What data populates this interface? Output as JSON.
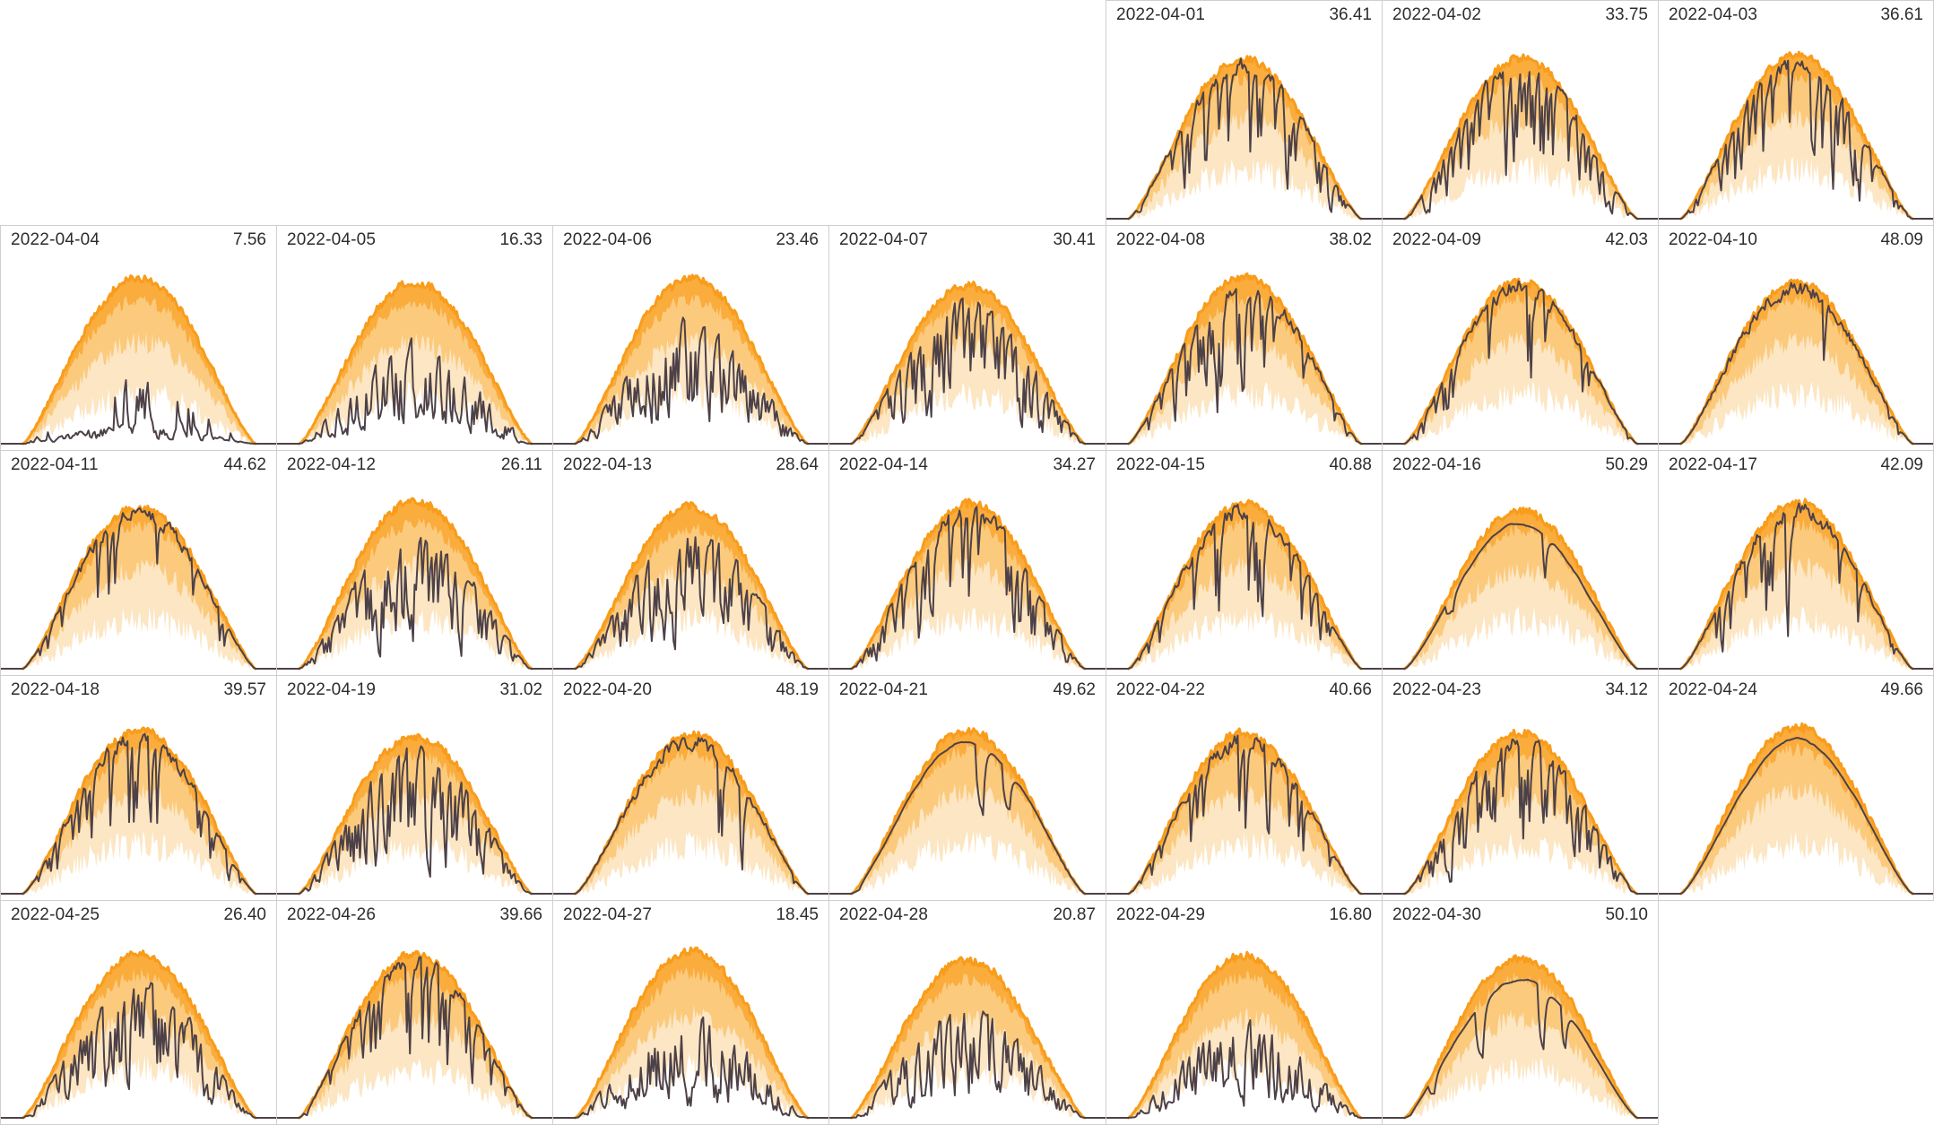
{
  "chart_data": {
    "type": "area",
    "layout": "calendar-small-multiples",
    "title": "",
    "columns": 7,
    "rows": 5,
    "week_start": "Monday",
    "first_cell_column_index": 4,
    "date_label_position": "top-left",
    "value_label_position": "top-right",
    "grid": "off",
    "axes": "hidden",
    "bands_meaning": [
      "outer-envelope",
      "mid-band",
      "inner-band",
      "floor-band"
    ],
    "colors": {
      "envelope_stroke": "#F89C1A",
      "band_outer_fill": "#FAAC3D",
      "band_mid_fill": "#FBCA7D",
      "band_inner_fill": "#FCE6C3",
      "band_floor_fill": "#FFFFFF",
      "production_line": "#4D4148",
      "cell_border": "#CFCFCF",
      "label_text": "#2D2D2D",
      "background": "#FFFFFF"
    },
    "days": [
      {
        "date": "2022-04-01",
        "label": "36.41",
        "value": 36.41
      },
      {
        "date": "2022-04-02",
        "label": "33.75",
        "value": 33.75
      },
      {
        "date": "2022-04-03",
        "label": "36.61",
        "value": 36.61
      },
      {
        "date": "2022-04-04",
        "label": "7.56",
        "value": 7.56
      },
      {
        "date": "2022-04-05",
        "label": "16.33",
        "value": 16.33
      },
      {
        "date": "2022-04-06",
        "label": "23.46",
        "value": 23.46
      },
      {
        "date": "2022-04-07",
        "label": "30.41",
        "value": 30.41
      },
      {
        "date": "2022-04-08",
        "label": "38.02",
        "value": 38.02
      },
      {
        "date": "2022-04-09",
        "label": "42.03",
        "value": 42.03
      },
      {
        "date": "2022-04-10",
        "label": "48.09",
        "value": 48.09
      },
      {
        "date": "2022-04-11",
        "label": "44.62",
        "value": 44.62
      },
      {
        "date": "2022-04-12",
        "label": "26.11",
        "value": 26.11
      },
      {
        "date": "2022-04-13",
        "label": "28.64",
        "value": 28.64
      },
      {
        "date": "2022-04-14",
        "label": "34.27",
        "value": 34.27
      },
      {
        "date": "2022-04-15",
        "label": "40.88",
        "value": 40.88
      },
      {
        "date": "2022-04-16",
        "label": "50.29",
        "value": 50.29
      },
      {
        "date": "2022-04-17",
        "label": "42.09",
        "value": 42.09
      },
      {
        "date": "2022-04-18",
        "label": "39.57",
        "value": 39.57
      },
      {
        "date": "2022-04-19",
        "label": "31.02",
        "value": 31.02
      },
      {
        "date": "2022-04-20",
        "label": "48.19",
        "value": 48.19
      },
      {
        "date": "2022-04-21",
        "label": "49.62",
        "value": 49.62
      },
      {
        "date": "2022-04-22",
        "label": "40.66",
        "value": 40.66
      },
      {
        "date": "2022-04-23",
        "label": "34.12",
        "value": 34.12
      },
      {
        "date": "2022-04-24",
        "label": "49.66",
        "value": 49.66
      },
      {
        "date": "2022-04-25",
        "label": "26.40",
        "value": 26.4
      },
      {
        "date": "2022-04-26",
        "label": "39.66",
        "value": 39.66
      },
      {
        "date": "2022-04-27",
        "label": "18.45",
        "value": 18.45
      },
      {
        "date": "2022-04-28",
        "label": "20.87",
        "value": 20.87
      },
      {
        "date": "2022-04-29",
        "label": "16.80",
        "value": 16.8
      },
      {
        "date": "2022-04-30",
        "label": "50.10",
        "value": 50.1
      }
    ]
  }
}
